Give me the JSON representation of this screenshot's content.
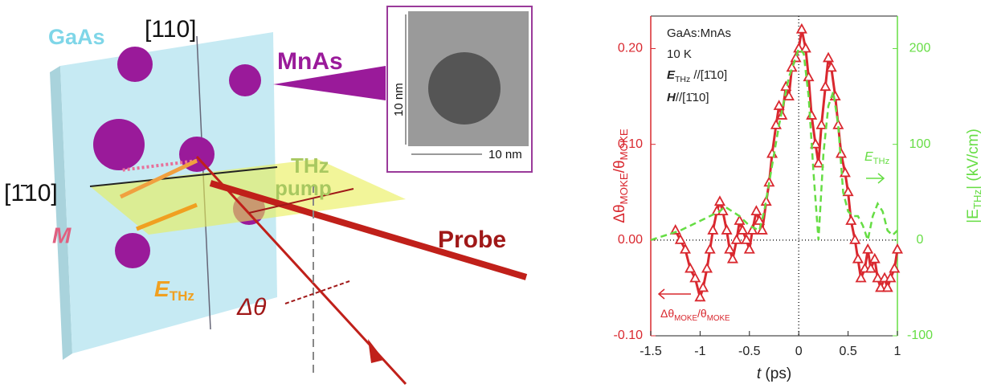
{
  "diagram": {
    "labels": {
      "gaas": "GaAs",
      "axis110": "[110]",
      "mnas": "MnAs",
      "thz": "THz",
      "pump": "pump",
      "axis1bar10": "[1̄10]",
      "m": "M",
      "e": "E",
      "thz_sub": "THz",
      "dtheta": "Δθ",
      "probe": "Probe",
      "scale_v": "10 nm",
      "scale_h": "10 nm"
    }
  },
  "chart_data": {
    "type": "line",
    "xlabel": [
      {
        "text": "t",
        "italic": true
      },
      {
        "text": " (ps)"
      }
    ],
    "ylabel": [
      {
        "text": "Δθ"
      },
      {
        "text": "MOKE",
        "sub": true
      },
      {
        "text": "/θ"
      },
      {
        "text": "MOKE",
        "sub": true
      }
    ],
    "y2label": [
      {
        "text": "|E"
      },
      {
        "text": "THz",
        "sub": true
      },
      {
        "text": "|  (kV/cm)"
      }
    ],
    "annotations": [
      [
        {
          "text": "GaAs:MnAs"
        }
      ],
      [
        {
          "text": "10 K"
        }
      ],
      [
        {
          "text": "E",
          "italic": true,
          "bold": true
        },
        {
          "text": "THz",
          "sub": true
        },
        {
          "text": " //[1̄10]"
        }
      ],
      [
        {
          "text": "H",
          "italic": true,
          "bold": true
        },
        {
          "text": "//[1̄10]"
        }
      ],
      [
        {
          "text": "E",
          "italic": true
        },
        {
          "text": "THz",
          "sub": true
        }
      ],
      [
        {
          "text": "Δθ"
        },
        {
          "text": "MOKE",
          "sub": true
        },
        {
          "text": "/θ"
        },
        {
          "text": "MOKE",
          "sub": true
        }
      ]
    ],
    "xlim": [
      -1.5,
      1
    ],
    "xticks": [
      -1.5,
      -1,
      -0.5,
      0,
      0.5,
      1
    ],
    "ylim": [
      -0.1,
      0.234
    ],
    "yticks": [
      {
        "value": 0.2,
        "label": "0.20"
      },
      {
        "value": 0.1,
        "label": "0.10"
      },
      {
        "value": 0,
        "label": "0.00"
      },
      {
        "value": -0.1,
        "label": "-0.10"
      }
    ],
    "y2lim": [
      -100,
      234
    ],
    "y2ticks": [
      200,
      100,
      0,
      -100
    ],
    "zero_lines": true,
    "series": [
      {
        "color": "#d9282f",
        "marker": "triangle",
        "x": [
          -1.25,
          -1.2,
          -1.15,
          -1.1,
          -1.05,
          -1.0,
          -0.97,
          -0.93,
          -0.9,
          -0.87,
          -0.83,
          -0.8,
          -0.77,
          -0.73,
          -0.7,
          -0.67,
          -0.63,
          -0.6,
          -0.57,
          -0.53,
          -0.5,
          -0.47,
          -0.43,
          -0.4,
          -0.37,
          -0.33,
          -0.3,
          -0.27,
          -0.23,
          -0.2,
          -0.17,
          -0.13,
          -0.1,
          -0.07,
          -0.03,
          0.0,
          0.03,
          0.07,
          0.1,
          0.13,
          0.17,
          0.2,
          0.23,
          0.27,
          0.3,
          0.33,
          0.37,
          0.4,
          0.43,
          0.47,
          0.5,
          0.53,
          0.57,
          0.6,
          0.63,
          0.67,
          0.7,
          0.73,
          0.77,
          0.8,
          0.83,
          0.87,
          0.9,
          0.93,
          0.97,
          1.0
        ],
        "values": [
          0.01,
          0.0,
          -0.01,
          -0.03,
          -0.04,
          -0.06,
          -0.05,
          -0.03,
          -0.01,
          0.01,
          0.03,
          0.04,
          0.03,
          0.01,
          -0.01,
          -0.02,
          0.0,
          0.02,
          0.01,
          0.0,
          -0.01,
          0.01,
          0.03,
          0.02,
          0.01,
          0.04,
          0.06,
          0.09,
          0.12,
          0.14,
          0.13,
          0.16,
          0.15,
          0.18,
          0.19,
          0.2,
          0.22,
          0.2,
          0.17,
          0.13,
          0.1,
          0.08,
          0.12,
          0.16,
          0.19,
          0.18,
          0.15,
          0.12,
          0.09,
          0.07,
          0.05,
          0.02,
          0.0,
          -0.02,
          -0.04,
          -0.03,
          -0.01,
          -0.03,
          -0.02,
          -0.04,
          -0.05,
          -0.04,
          -0.05,
          -0.04,
          -0.03,
          -0.01
        ]
      },
      {
        "color": "#66dd44",
        "dash": true,
        "axis": "y2",
        "x": [
          -1.5,
          -1.2,
          -1.0,
          -0.8,
          -0.75,
          -0.6,
          -0.5,
          -0.4,
          -0.35,
          -0.3,
          -0.2,
          -0.1,
          0.0,
          0.05,
          0.1,
          0.15,
          0.2,
          0.25,
          0.3,
          0.35,
          0.4,
          0.45,
          0.5,
          0.55,
          0.6,
          0.65,
          0.7,
          0.75,
          0.8,
          0.85,
          0.9,
          0.95,
          1.0
        ],
        "values": [
          0,
          10,
          20,
          30,
          35,
          25,
          15,
          10,
          30,
          60,
          120,
          170,
          200,
          195,
          150,
          70,
          0,
          90,
          140,
          155,
          120,
          50,
          30,
          25,
          25,
          15,
          0,
          25,
          38,
          30,
          10,
          5,
          10
        ]
      }
    ]
  }
}
